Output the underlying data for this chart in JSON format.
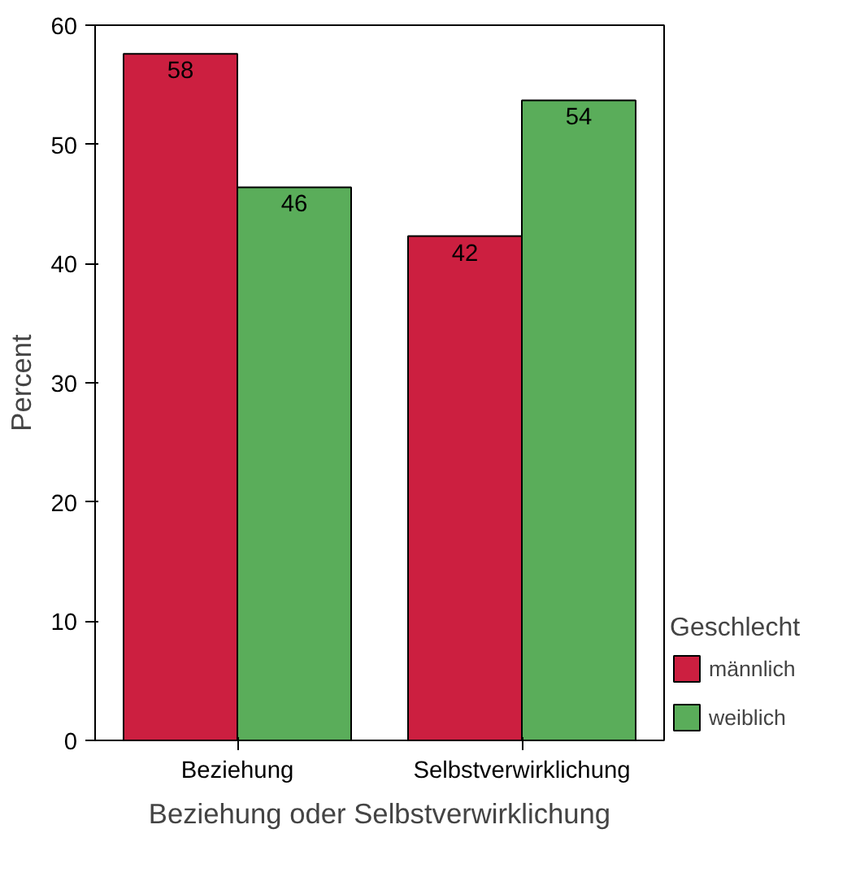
{
  "chart_data": {
    "type": "bar",
    "xlabel": "Beziehung oder Selbstverwirklichung",
    "ylabel": "Percent",
    "legend_title": "Geschlecht",
    "categories": [
      "Beziehung",
      "Selbstverwirklichung"
    ],
    "series": [
      {
        "name": "männlich",
        "color": "#cc1f40",
        "values": [
          57.6,
          42.3
        ],
        "value_labels": [
          "58",
          "42"
        ]
      },
      {
        "name": "weiblich",
        "color": "#5aad5a",
        "values": [
          46.4,
          53.7
        ],
        "value_labels": [
          "46",
          "54"
        ]
      }
    ],
    "ylim": [
      0,
      60
    ],
    "yticks": [
      0,
      10,
      20,
      30,
      40,
      50,
      60
    ],
    "grid": false,
    "legend": "right"
  }
}
